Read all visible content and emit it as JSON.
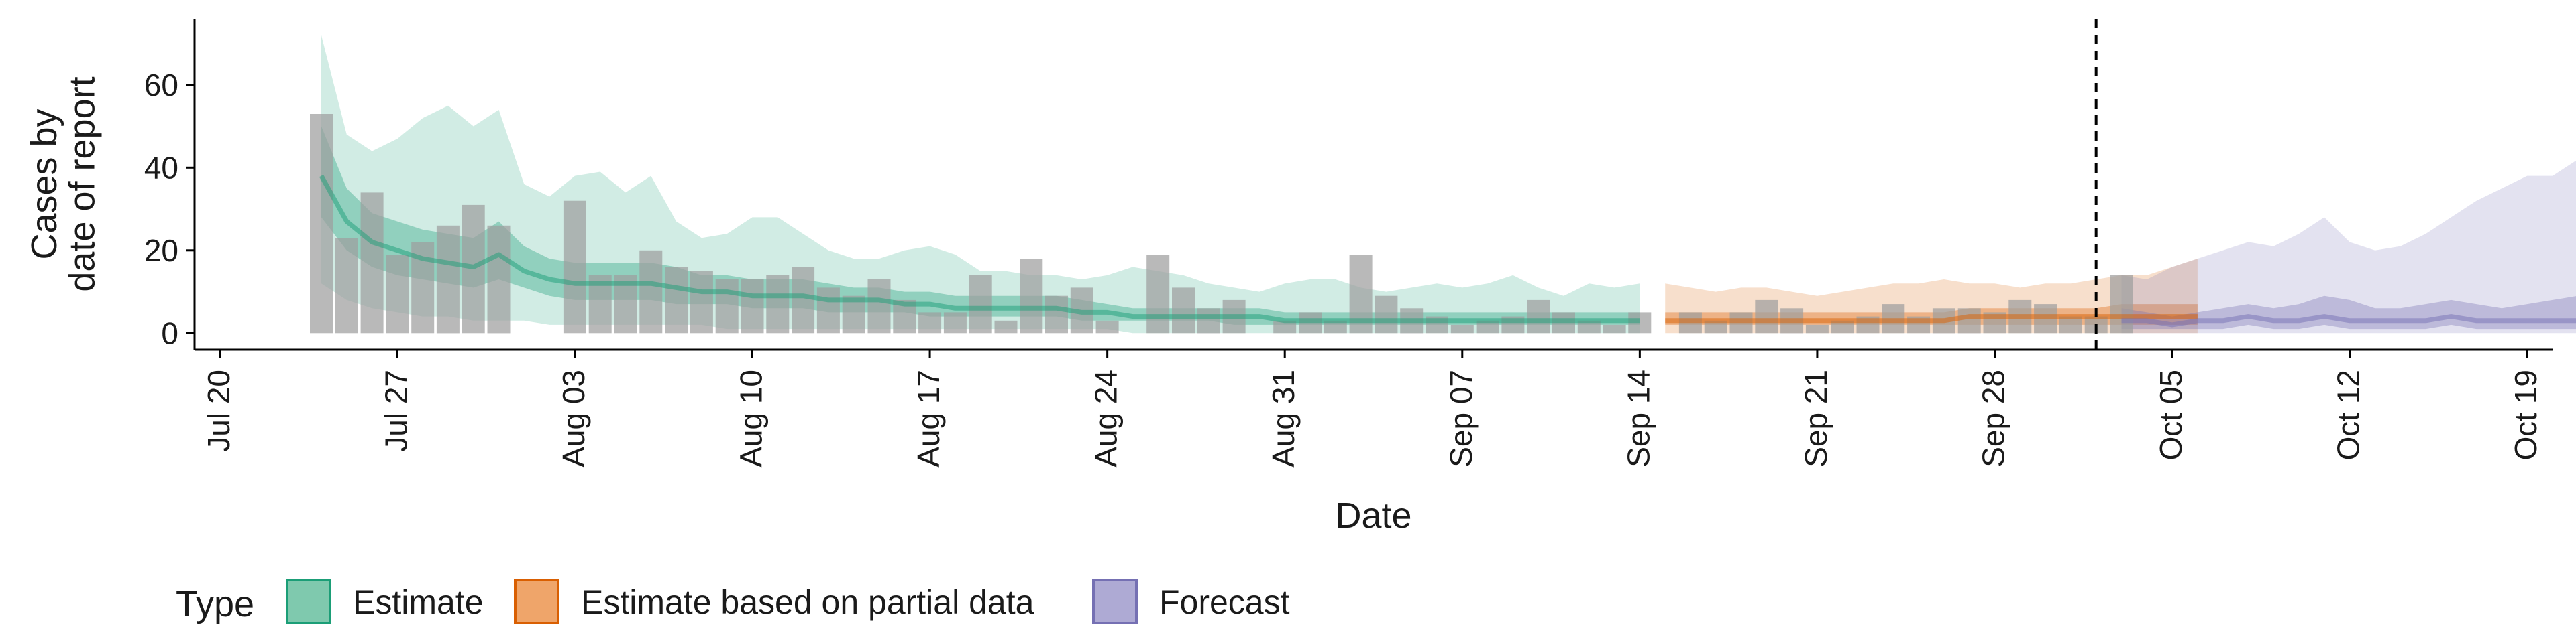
{
  "chart_data": {
    "type": "bar",
    "xlabel": "Date",
    "ylabel_lines": [
      "Cases by",
      "date of report"
    ],
    "ylim": [
      -4,
      76
    ],
    "y_ticks": [
      0,
      20,
      40,
      60
    ],
    "xlim": [
      "2020-07-19",
      "2020-10-20"
    ],
    "x_ticks": [
      {
        "date": "2020-07-20",
        "label": "Jul 20"
      },
      {
        "date": "2020-07-27",
        "label": "Jul 27"
      },
      {
        "date": "2020-08-03",
        "label": "Aug 03"
      },
      {
        "date": "2020-08-10",
        "label": "Aug 10"
      },
      {
        "date": "2020-08-17",
        "label": "Aug 17"
      },
      {
        "date": "2020-08-24",
        "label": "Aug 24"
      },
      {
        "date": "2020-08-31",
        "label": "Aug 31"
      },
      {
        "date": "2020-09-07",
        "label": "Sep 07"
      },
      {
        "date": "2020-09-14",
        "label": "Sep 14"
      },
      {
        "date": "2020-09-21",
        "label": "Sep 21"
      },
      {
        "date": "2020-09-28",
        "label": "Sep 28"
      },
      {
        "date": "2020-10-05",
        "label": "Oct 05"
      },
      {
        "date": "2020-10-12",
        "label": "Oct 12"
      },
      {
        "date": "2020-10-19",
        "label": "Oct 19"
      }
    ],
    "vline_date": "2020-10-02",
    "grid": false,
    "legend": {
      "position": "bottom",
      "title": "Type",
      "entries": [
        {
          "label": "Estimate",
          "fill": "#7fc9ae",
          "stroke": "#1b9e77"
        },
        {
          "label": "Estimate based on partial data",
          "fill": "#efa56a",
          "stroke": "#d95f02"
        },
        {
          "label": "Forecast",
          "fill": "#aeaad4",
          "stroke": "#7570b3"
        }
      ]
    },
    "colors": {
      "estimate": "#1b9e77",
      "partial": "#d95f02",
      "forecast": "#7570b3",
      "bars": "#9e9e9e"
    },
    "observed": {
      "start_date": "2020-07-24",
      "values": [
        53,
        23,
        34,
        19,
        22,
        26,
        31,
        26,
        0,
        0,
        32,
        14,
        14,
        20,
        16,
        15,
        13,
        13,
        14,
        16,
        11,
        9,
        13,
        8,
        5,
        5,
        14,
        3,
        18,
        9,
        11,
        3,
        0,
        19,
        11,
        6,
        8,
        0,
        3,
        5,
        3,
        19,
        9,
        6,
        4,
        2,
        3,
        4,
        8,
        5,
        3,
        2,
        5,
        0,
        5,
        3,
        5,
        8,
        6,
        2,
        3,
        4,
        7,
        4,
        6,
        6,
        5,
        8,
        7,
        4,
        4,
        14
      ]
    },
    "series": [
      {
        "name": "Estimate",
        "start_date": "2020-07-24",
        "median": [
          38,
          27,
          22,
          20,
          18,
          17,
          16,
          19,
          15,
          13,
          12,
          12,
          12,
          12,
          11,
          10,
          10,
          9,
          9,
          9,
          8,
          8,
          8,
          7,
          7,
          6,
          6,
          6,
          6,
          6,
          5,
          5,
          4,
          4,
          4,
          4,
          4,
          4,
          3,
          3,
          3,
          3,
          3,
          3,
          3,
          3,
          3,
          3,
          3,
          3,
          3,
          3,
          3
        ],
        "lower50": [
          28,
          20,
          16,
          14,
          13,
          12,
          11,
          13,
          11,
          9,
          8,
          8,
          8,
          8,
          7,
          7,
          7,
          6,
          6,
          6,
          5,
          5,
          5,
          5,
          4,
          4,
          4,
          4,
          4,
          4,
          3,
          3,
          3,
          3,
          3,
          3,
          2,
          2,
          2,
          2,
          2,
          2,
          2,
          2,
          2,
          2,
          2,
          2,
          2,
          2,
          2,
          2,
          2
        ],
        "upper50": [
          50,
          35,
          29,
          27,
          25,
          24,
          23,
          27,
          21,
          18,
          17,
          17,
          17,
          17,
          16,
          14,
          14,
          13,
          13,
          13,
          12,
          11,
          11,
          10,
          10,
          9,
          9,
          9,
          9,
          9,
          8,
          7,
          6,
          6,
          6,
          6,
          6,
          6,
          5,
          5,
          5,
          5,
          5,
          5,
          5,
          5,
          5,
          5,
          5,
          5,
          5,
          5,
          5
        ],
        "lower90": [
          12,
          8,
          6,
          5,
          4,
          4,
          3,
          3,
          3,
          2,
          2,
          2,
          2,
          2,
          2,
          2,
          1,
          1,
          1,
          1,
          1,
          1,
          1,
          1,
          1,
          1,
          1,
          1,
          1,
          1,
          1,
          1,
          0,
          0,
          0,
          0,
          0,
          0,
          0,
          0,
          0,
          0,
          0,
          0,
          0,
          0,
          0,
          0,
          0,
          0,
          0,
          0,
          0
        ],
        "upper90": [
          72,
          48,
          44,
          47,
          52,
          55,
          50,
          54,
          36,
          33,
          38,
          39,
          34,
          38,
          27,
          23,
          24,
          28,
          28,
          24,
          20,
          18,
          18,
          20,
          21,
          19,
          15,
          15,
          14,
          14,
          13,
          14,
          16,
          15,
          14,
          12,
          11,
          10,
          12,
          13,
          13,
          11,
          10,
          11,
          12,
          11,
          12,
          14,
          11,
          9,
          12,
          11,
          12
        ]
      },
      {
        "name": "Estimate based on partial data",
        "start_date": "2020-09-15",
        "median": [
          3,
          3,
          3,
          3,
          3,
          3,
          3,
          3,
          3,
          3,
          3,
          3,
          4,
          4,
          4,
          4,
          4,
          4,
          4,
          4,
          4,
          4
        ],
        "lower50": [
          2,
          2,
          2,
          2,
          2,
          2,
          2,
          2,
          2,
          2,
          2,
          2,
          2,
          2,
          2,
          2,
          2,
          2,
          2,
          2,
          2,
          2
        ],
        "upper50": [
          5,
          5,
          5,
          5,
          5,
          5,
          5,
          5,
          5,
          5,
          5,
          5,
          6,
          6,
          6,
          6,
          6,
          6,
          7,
          7,
          7,
          7
        ],
        "lower90": [
          0,
          0,
          0,
          0,
          0,
          0,
          0,
          0,
          0,
          0,
          0,
          0,
          0,
          0,
          0,
          0,
          0,
          0,
          0,
          0,
          0,
          0
        ],
        "upper90": [
          12,
          11,
          10,
          11,
          11,
          10,
          9,
          10,
          11,
          12,
          12,
          13,
          12,
          12,
          11,
          12,
          12,
          13,
          14,
          14,
          16,
          18
        ]
      },
      {
        "name": "Forecast",
        "start_date": "2020-10-03",
        "median": [
          3,
          3,
          2,
          3,
          3,
          4,
          3,
          3,
          4,
          3,
          3,
          3,
          3,
          4,
          3,
          3,
          3,
          3,
          3,
          4,
          4
        ],
        "lower50": [
          1,
          1,
          1,
          1,
          1,
          2,
          1,
          1,
          2,
          1,
          1,
          1,
          1,
          2,
          1,
          1,
          1,
          1,
          1,
          2,
          2
        ],
        "upper50": [
          6,
          5,
          4,
          5,
          6,
          7,
          6,
          7,
          9,
          8,
          6,
          6,
          7,
          8,
          7,
          6,
          7,
          8,
          9,
          10,
          11
        ],
        "lower90": [
          0,
          0,
          0,
          0,
          0,
          0,
          0,
          0,
          0,
          0,
          0,
          0,
          0,
          0,
          0,
          0,
          0,
          0,
          0,
          0,
          0
        ],
        "upper90": [
          14,
          13,
          16,
          18,
          20,
          22,
          21,
          24,
          28,
          22,
          20,
          21,
          24,
          28,
          32,
          35,
          38,
          38,
          42,
          45,
          49
        ]
      }
    ]
  }
}
